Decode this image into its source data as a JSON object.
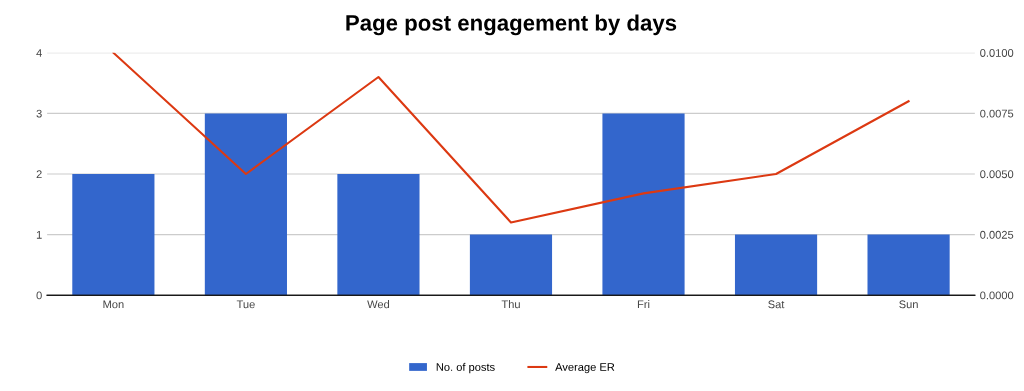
{
  "chart_data": {
    "type": "bar",
    "title": "Page post engagement by days",
    "categories": [
      "Mon",
      "Tue",
      "Wed",
      "Thu",
      "Fri",
      "Sat",
      "Sun"
    ],
    "series": [
      {
        "name": "No. of posts",
        "color": "#3366cc",
        "values": [
          2,
          3,
          2,
          1,
          3,
          1,
          1
        ]
      },
      {
        "name": "Average ER",
        "type": "line",
        "axis": "y2",
        "color": "#dc3912",
        "values": [
          0.01,
          0.005,
          0.009,
          0.003,
          0.0042,
          0.005,
          0.008
        ]
      }
    ],
    "ylim": [
      0,
      4
    ],
    "yticks": [
      0,
      1,
      2,
      3,
      4
    ],
    "y2lim": [
      0,
      0.01
    ],
    "y2ticks": [
      {
        "value": 0,
        "label": "0.0000"
      },
      {
        "value": 0.0025,
        "label": "0.0025"
      },
      {
        "value": 0.005,
        "label": "0.0050"
      },
      {
        "value": 0.0075,
        "label": "0.0075"
      },
      {
        "value": 0.01,
        "label": "0.0100"
      }
    ],
    "grid": "y",
    "legend": "bottom",
    "marker": "none"
  }
}
